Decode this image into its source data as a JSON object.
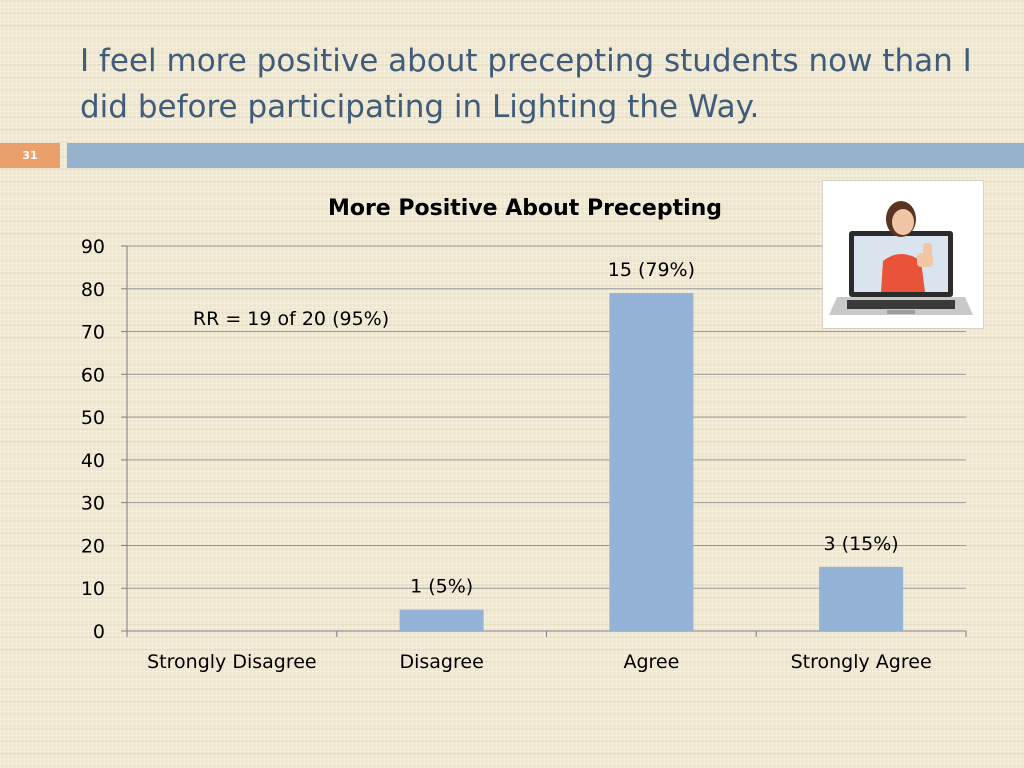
{
  "slide": {
    "title": "I feel more positive about precepting students now than I did before participating in Lighting the Way.",
    "number": "31"
  },
  "colors": {
    "title": "#3f5d7a",
    "bar": "#95b3d7",
    "accent_bar": "#97b2cd",
    "slide_number_bg": "#e9a06a"
  },
  "image": {
    "icon": "woman-thumbs-up-laptop-icon"
  },
  "chart_data": {
    "type": "bar",
    "title": "More Positive About Precepting",
    "xlabel": "",
    "ylabel": "",
    "categories": [
      "Strongly Disagree",
      "Disagree",
      "Agree",
      "Strongly Agree"
    ],
    "values": [
      0,
      5,
      79,
      15
    ],
    "data_labels": [
      "",
      "1 (5%)",
      "15 (79%)",
      "3 (15%)"
    ],
    "ylim": [
      0,
      90
    ],
    "yticks": [
      0,
      10,
      20,
      30,
      40,
      50,
      60,
      70,
      80,
      90
    ],
    "grid": true,
    "annotation": "RR = 19 of 20 (95%)",
    "legend": "none"
  }
}
